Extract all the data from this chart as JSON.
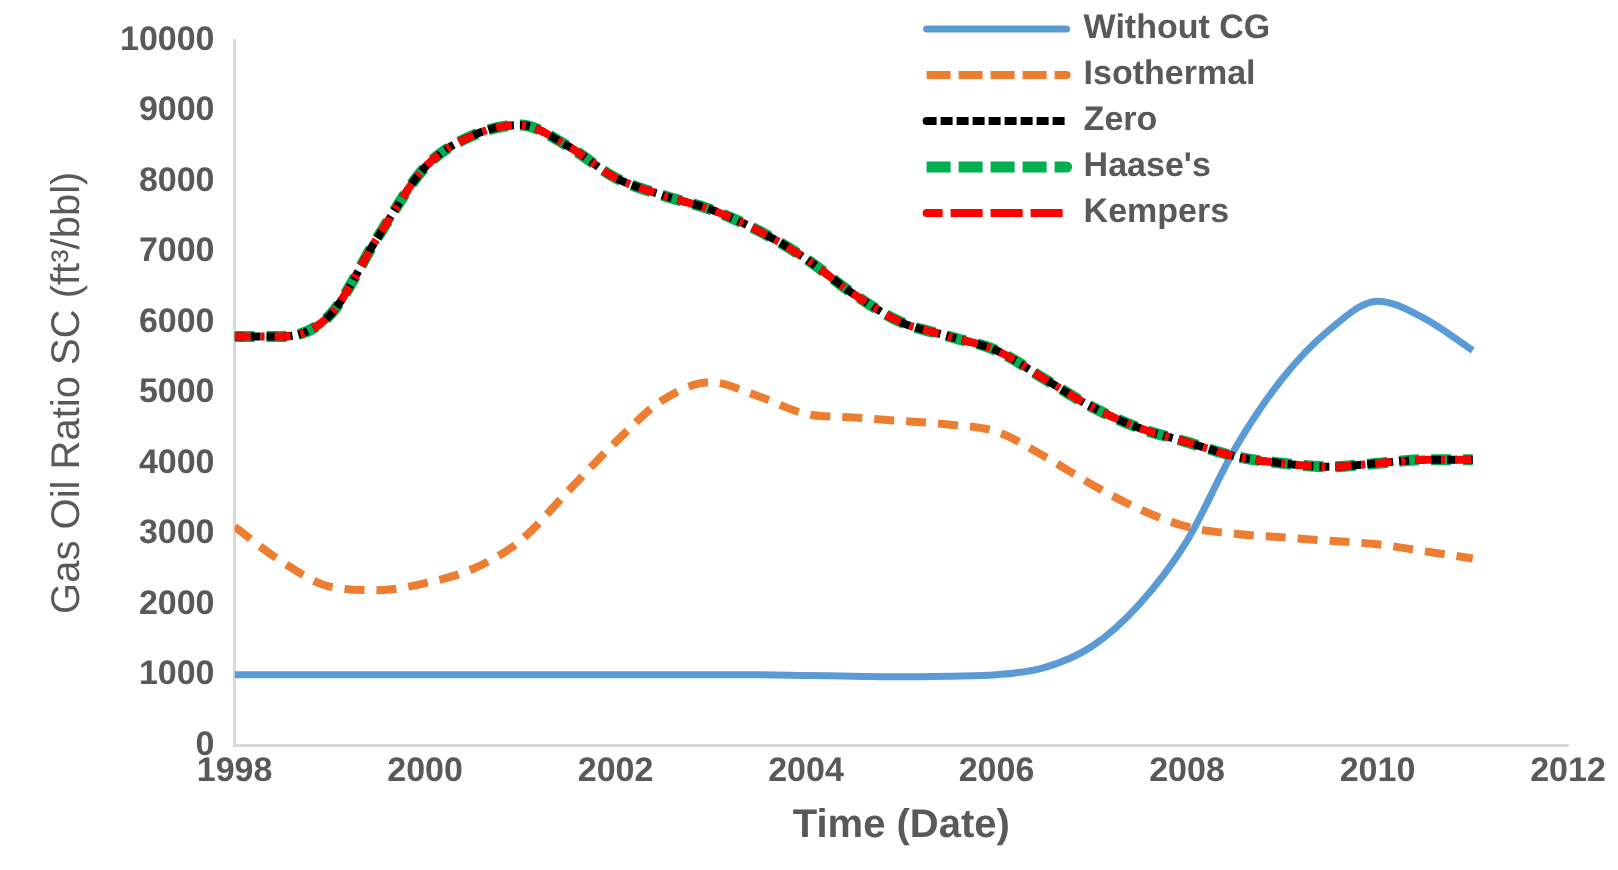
{
  "chart_data": {
    "type": "line",
    "xlabel": "Time (Date)",
    "ylabel": "Gas Oil Ratio SC (ft³/bbl)",
    "xlim": [
      1998,
      2012
    ],
    "xticks": [
      1998,
      2000,
      2002,
      2004,
      2006,
      2008,
      2010,
      2012
    ],
    "ylim": [
      0,
      10000
    ],
    "yticks": [
      0,
      1000,
      2000,
      3000,
      4000,
      5000,
      6000,
      7000,
      8000,
      9000,
      10000
    ],
    "grid": false,
    "legend": "top right",
    "marker": "none",
    "x": [
      1998,
      1998.5,
      1999,
      1999.5,
      2000,
      2000.5,
      2001,
      2001.5,
      2002,
      2002.5,
      2003,
      2003.5,
      2004,
      2004.5,
      2005,
      2005.5,
      2006,
      2006.5,
      2007,
      2007.5,
      2008,
      2008.5,
      2009,
      2009.5,
      2010,
      2010.5,
      2011
    ],
    "series": [
      {
        "name": "Without CG",
        "color": "#5b9bd5",
        "line_style": "solid",
        "values": [
          1000,
          1000,
          1000,
          1000,
          1000,
          1000,
          1000,
          1000,
          1000,
          1000,
          1000,
          1000,
          990,
          980,
          970,
          980,
          1000,
          1100,
          1400,
          2000,
          2900,
          4200,
          5200,
          5900,
          6300,
          6050,
          5600
        ]
      },
      {
        "name": "Isothermal",
        "color": "#ed7d31",
        "line_style": "dashed",
        "values": [
          3100,
          2600,
          2250,
          2200,
          2300,
          2500,
          2900,
          3600,
          4300,
          4900,
          5150,
          4950,
          4700,
          4650,
          4600,
          4550,
          4450,
          4100,
          3700,
          3350,
          3100,
          3000,
          2950,
          2900,
          2850,
          2750,
          2650
        ]
      },
      {
        "name": "Zero",
        "color": "#000000",
        "line_style": "dashed",
        "values": [
          5800,
          5800,
          6100,
          7200,
          8200,
          8650,
          8800,
          8500,
          8050,
          7800,
          7600,
          7300,
          6900,
          6400,
          6000,
          5800,
          5600,
          5200,
          4800,
          4500,
          4300,
          4100,
          4000,
          3950,
          4000,
          4050,
          4050
        ]
      },
      {
        "name": "Haase's",
        "color": "#00b050",
        "line_style": "dashed",
        "values": [
          5800,
          5800,
          6100,
          7200,
          8200,
          8650,
          8800,
          8500,
          8050,
          7800,
          7600,
          7300,
          6900,
          6400,
          6000,
          5800,
          5600,
          5200,
          4800,
          4500,
          4300,
          4100,
          4000,
          3950,
          4000,
          4050,
          4050
        ]
      },
      {
        "name": "Kempers",
        "color": "#ff0000",
        "line_style": "dashdot",
        "values": [
          5800,
          5800,
          6100,
          7200,
          8200,
          8650,
          8800,
          8500,
          8050,
          7800,
          7600,
          7300,
          6900,
          6400,
          6000,
          5800,
          5600,
          5200,
          4800,
          4500,
          4300,
          4100,
          4000,
          3950,
          4000,
          4050,
          4050
        ]
      }
    ]
  }
}
